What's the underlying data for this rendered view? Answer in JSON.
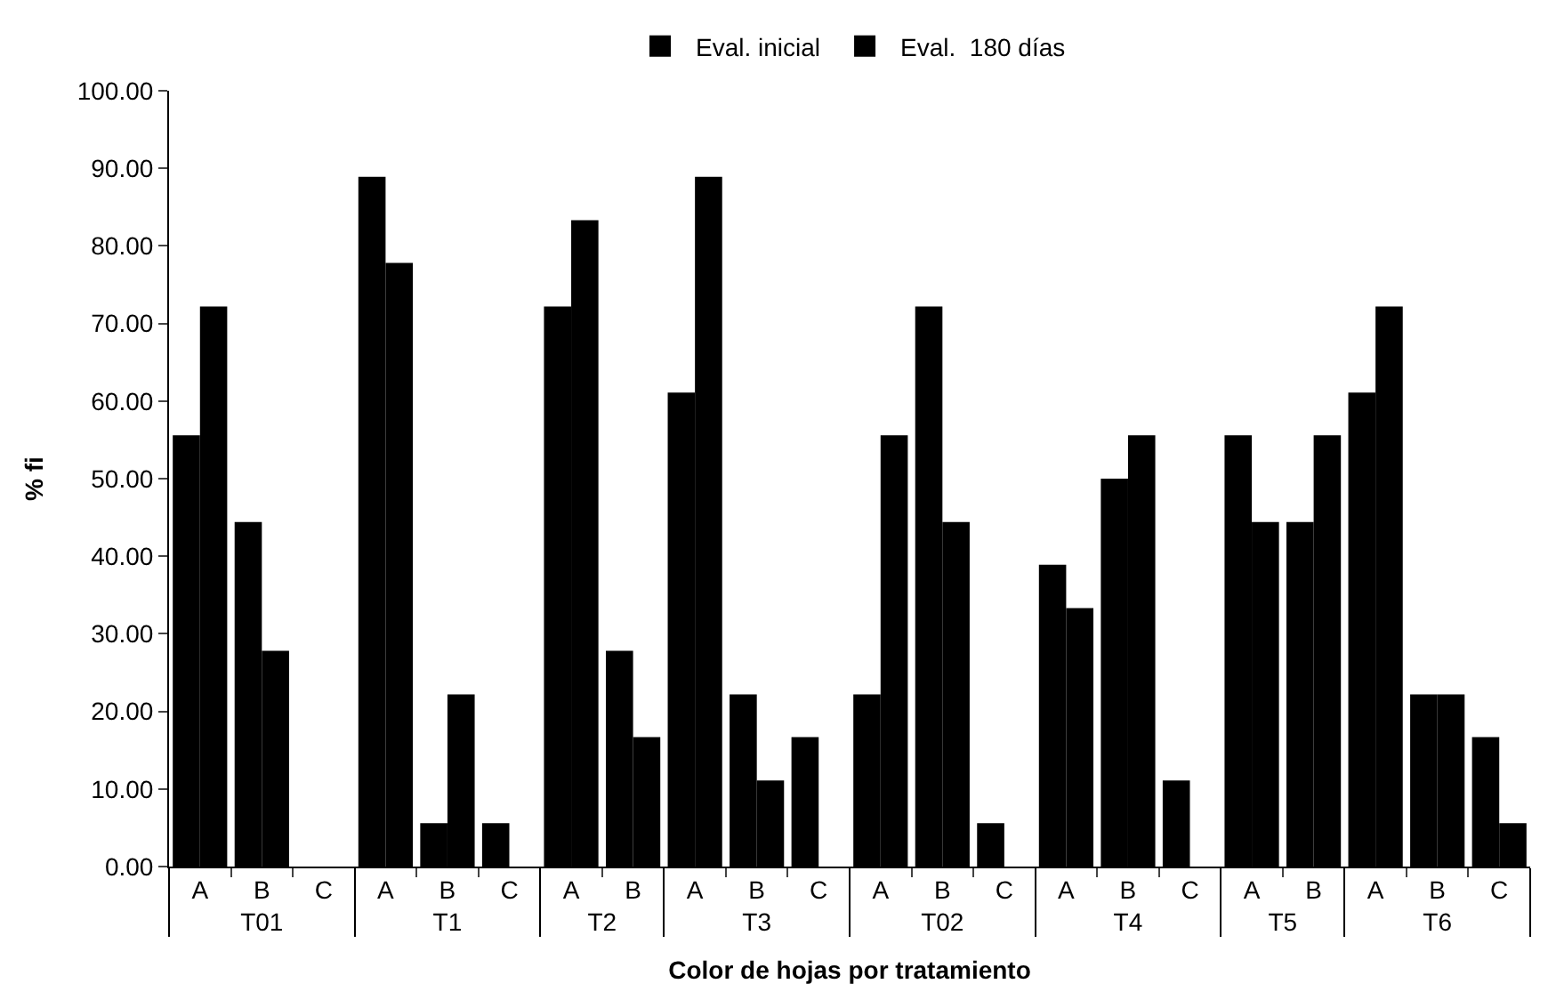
{
  "chart_data": {
    "type": "bar",
    "xlabel": "Color de hojas por tratamiento",
    "ylabel": "% fi",
    "categories": [
      "A",
      "B",
      "C",
      "A",
      "B",
      "C",
      "A",
      "B",
      "A",
      "B",
      "C",
      "A",
      "B",
      "C",
      "A",
      "B",
      "C",
      "A",
      "B",
      "A",
      "B",
      "C"
    ],
    "annotations": [
      "T01",
      "T1",
      "T2",
      "T3",
      "T02",
      "T4",
      "T5",
      "T6"
    ],
    "series": [
      {
        "name": "Eval. inicial",
        "color": "#000000",
        "values": [
          55.6,
          44.4,
          0,
          88.9,
          5.6,
          5.6,
          72.2,
          27.8,
          61.1,
          22.2,
          16.7,
          22.2,
          72.2,
          5.6,
          38.9,
          50.0,
          11.1,
          55.6,
          44.4,
          61.1,
          22.2,
          16.7
        ]
      },
      {
        "name": "Eval.  180 días",
        "color": "#000000",
        "values": [
          72.2,
          27.8,
          0,
          77.8,
          22.2,
          0,
          83.3,
          16.7,
          88.9,
          11.1,
          0,
          55.6,
          44.4,
          0,
          33.3,
          55.6,
          0,
          44.4,
          55.6,
          72.2,
          22.2,
          5.6
        ]
      }
    ],
    "ylim": [
      0,
      100
    ],
    "yticks": [
      {
        "value": 0,
        "label": "0.00"
      },
      {
        "value": 10,
        "label": "10.00"
      },
      {
        "value": 20,
        "label": "20.00"
      },
      {
        "value": 30,
        "label": "30.00"
      },
      {
        "value": 40,
        "label": "40.00"
      },
      {
        "value": 50,
        "label": "50.00"
      },
      {
        "value": 60,
        "label": "60.00"
      },
      {
        "value": 70,
        "label": "70.00"
      },
      {
        "value": 80,
        "label": "80.00"
      },
      {
        "value": 90,
        "label": "90.00"
      },
      {
        "value": 100,
        "label": "100.00"
      }
    ],
    "legend": "top"
  }
}
